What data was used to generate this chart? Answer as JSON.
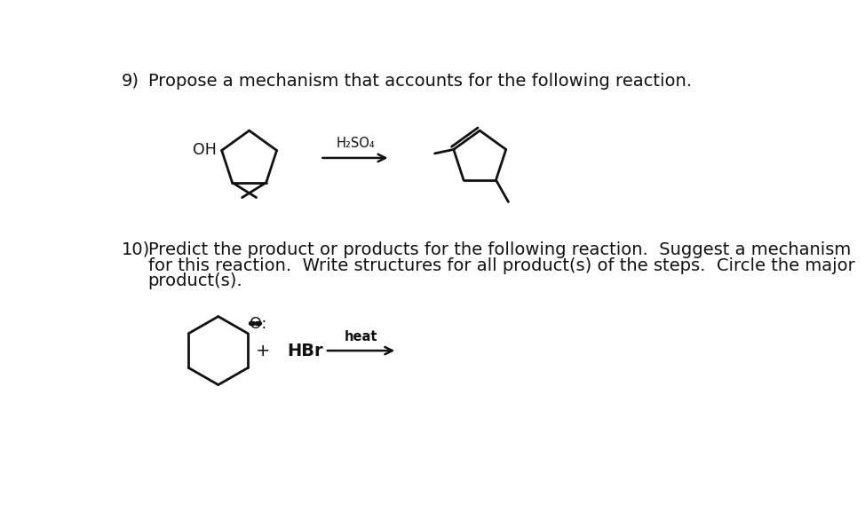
{
  "background_color": "#ffffff",
  "q9_number": "9)",
  "q9_text": "Propose a mechanism that accounts for the following reaction.",
  "q9_reagent": "H₂SO₄",
  "q10_number": "10)",
  "q10_text_line1": "Predict the product or products for the following reaction.  Suggest a mechanism",
  "q10_text_line2": "for this reaction.  Write structures for all product(s) of the steps.  Circle the major",
  "q10_text_line3": "product(s).",
  "text_color": "#111111",
  "line_color": "#111111",
  "fontsize_main": 14.0,
  "fontsize_reagent": 10.5
}
